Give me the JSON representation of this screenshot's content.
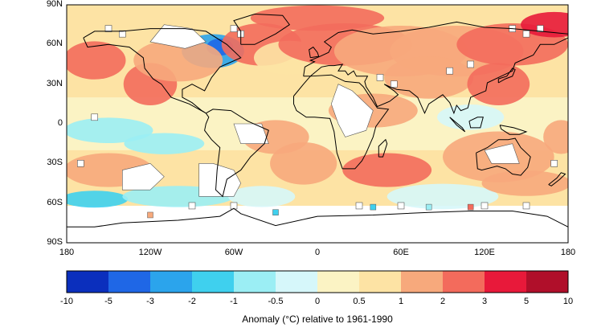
{
  "map": {
    "lat_labels": [
      "90N",
      "60N",
      "30N",
      "0",
      "30S",
      "60S",
      "90S"
    ],
    "lat_values": [
      90,
      60,
      30,
      0,
      -30,
      -60,
      -90
    ],
    "lon_labels": [
      "180",
      "120W",
      "60W",
      "0",
      "60E",
      "120E",
      "180"
    ],
    "lon_values": [
      -180,
      -120,
      -60,
      0,
      60,
      120,
      180
    ]
  },
  "colorbar": {
    "colors": [
      "#0b2fbd",
      "#1f67e6",
      "#2ba4ec",
      "#3fd0ee",
      "#9beef4",
      "#d6f7fa",
      "#fbf3c4",
      "#fde3a4",
      "#f7a97c",
      "#f36b5c",
      "#e8193a",
      "#b00f2a"
    ],
    "tick_labels": [
      "-10",
      "-5",
      "-3",
      "-2",
      "-1",
      "-0.5",
      "0",
      "0.5",
      "1",
      "2",
      "3",
      "5",
      "10"
    ],
    "title": "Anomaly (°C) relative to 1961-1990"
  },
  "anomaly_blobs": [
    {
      "lon": -75,
      "lat": 55,
      "rx": 14,
      "ry": 8,
      "cls": 2
    },
    {
      "lon": -70,
      "lat": 58,
      "rx": 6,
      "ry": 4,
      "cls": 1
    },
    {
      "lon": -160,
      "lat": 48,
      "rx": 14,
      "ry": 9,
      "cls": 9
    },
    {
      "lon": -120,
      "lat": 30,
      "rx": 12,
      "ry": 10,
      "cls": 9
    },
    {
      "lon": -100,
      "lat": 48,
      "rx": 20,
      "ry": 10,
      "cls": 8
    },
    {
      "lon": -40,
      "lat": 60,
      "rx": 18,
      "ry": 10,
      "cls": 9
    },
    {
      "lon": -20,
      "lat": 50,
      "rx": 16,
      "ry": 8,
      "cls": 7
    },
    {
      "lon": 20,
      "lat": 60,
      "rx": 30,
      "ry": 10,
      "cls": 9
    },
    {
      "lon": 60,
      "lat": 55,
      "rx": 30,
      "ry": 12,
      "cls": 8
    },
    {
      "lon": 100,
      "lat": 55,
      "rx": 30,
      "ry": 12,
      "cls": 8
    },
    {
      "lon": 140,
      "lat": 60,
      "rx": 25,
      "ry": 10,
      "cls": 9
    },
    {
      "lon": 170,
      "lat": 75,
      "rx": 15,
      "ry": 6,
      "cls": 10
    },
    {
      "lon": 0,
      "lat": 80,
      "rx": 30,
      "ry": 6,
      "cls": 9
    },
    {
      "lon": 80,
      "lat": 35,
      "rx": 20,
      "ry": 10,
      "cls": 8
    },
    {
      "lon": 130,
      "lat": 30,
      "rx": 14,
      "ry": 10,
      "cls": 9
    },
    {
      "lon": 40,
      "lat": 10,
      "rx": 20,
      "ry": 8,
      "cls": 8
    },
    {
      "lon": -150,
      "lat": -5,
      "rx": 20,
      "ry": 6,
      "cls": 4
    },
    {
      "lon": -110,
      "lat": -15,
      "rx": 18,
      "ry": 5,
      "cls": 4
    },
    {
      "lon": -30,
      "lat": -10,
      "rx": 15,
      "ry": 8,
      "cls": 8
    },
    {
      "lon": -10,
      "lat": -30,
      "rx": 15,
      "ry": 10,
      "cls": 8
    },
    {
      "lon": 50,
      "lat": -35,
      "rx": 20,
      "ry": 8,
      "cls": 9
    },
    {
      "lon": 130,
      "lat": -25,
      "rx": 25,
      "ry": 12,
      "cls": 8
    },
    {
      "lon": -150,
      "lat": -35,
      "rx": 20,
      "ry": 8,
      "cls": 8
    },
    {
      "lon": -160,
      "lat": -57,
      "rx": 15,
      "ry": 4,
      "cls": 3
    },
    {
      "lon": -100,
      "lat": -55,
      "rx": 25,
      "ry": 5,
      "cls": 4
    },
    {
      "lon": -40,
      "lat": -55,
      "rx": 15,
      "ry": 5,
      "cls": 5
    },
    {
      "lon": 90,
      "lat": -55,
      "rx": 25,
      "ry": 6,
      "cls": 5
    },
    {
      "lon": 150,
      "lat": -45,
      "rx": 20,
      "ry": 6,
      "cls": 8
    },
    {
      "lon": 110,
      "lat": 5,
      "rx": 15,
      "ry": 6,
      "cls": 5
    },
    {
      "lon": 175,
      "lat": -10,
      "rx": 8,
      "ry": 8,
      "cls": 8
    }
  ],
  "missing_regions": [
    {
      "points": [
        [
          -120,
          62
        ],
        [
          -110,
          75
        ],
        [
          -90,
          72
        ],
        [
          -80,
          62
        ],
        [
          -95,
          57
        ],
        [
          -110,
          60
        ]
      ]
    },
    {
      "points": [
        [
          15,
          30
        ],
        [
          25,
          25
        ],
        [
          40,
          10
        ],
        [
          35,
          -5
        ],
        [
          20,
          -10
        ],
        [
          15,
          0
        ],
        [
          10,
          15
        ]
      ]
    },
    {
      "points": [
        [
          -85,
          -30
        ],
        [
          -75,
          -30
        ],
        [
          -60,
          -35
        ],
        [
          -55,
          -45
        ],
        [
          -60,
          -55
        ],
        [
          -85,
          -55
        ]
      ]
    },
    {
      "points": [
        [
          -140,
          -35
        ],
        [
          -120,
          -30
        ],
        [
          -110,
          -40
        ],
        [
          -120,
          -50
        ],
        [
          -140,
          -50
        ]
      ]
    },
    {
      "points": [
        [
          -60,
          0
        ],
        [
          -40,
          0
        ],
        [
          -35,
          -15
        ],
        [
          -55,
          -15
        ]
      ]
    },
    {
      "points": [
        [
          120,
          -20
        ],
        [
          140,
          -15
        ],
        [
          145,
          -30
        ],
        [
          125,
          -30
        ]
      ]
    }
  ]
}
